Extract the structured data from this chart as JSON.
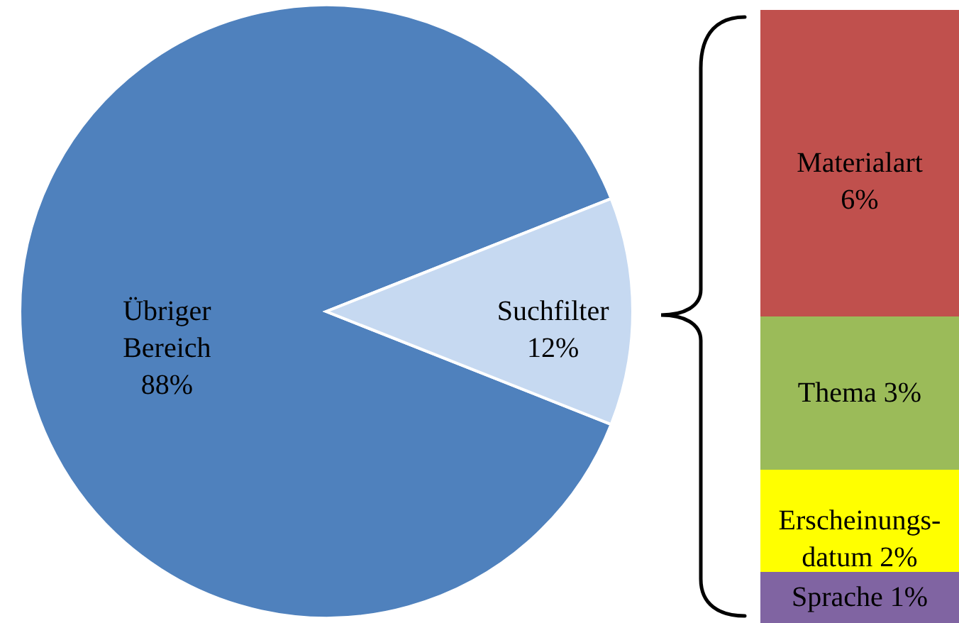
{
  "chart_data": [
    {
      "type": "pie",
      "categories": [
        "Übriger Bereich",
        "Suchfilter"
      ],
      "values": [
        88,
        12
      ],
      "value_labels": [
        "88%",
        "12%"
      ],
      "colors": [
        "#4f81bd",
        "#c6d9f1"
      ]
    },
    {
      "type": "bar",
      "stacked": true,
      "categories": [
        null
      ],
      "series": [
        {
          "name": "Sprache",
          "color": "#8064a2",
          "values": [
            1
          ],
          "value_labels": [
            "1%"
          ]
        },
        {
          "name": "Erscheinungs-datum",
          "color": "#ffff00",
          "values": [
            2
          ],
          "value_labels": [
            "2%"
          ]
        },
        {
          "name": "Thema",
          "color": "#9bbb59",
          "values": [
            3
          ],
          "value_labels": [
            "3%"
          ]
        },
        {
          "name": "Materialart",
          "color": "#c0504d",
          "values": [
            6
          ],
          "value_labels": [
            "6%"
          ]
        }
      ]
    }
  ]
}
